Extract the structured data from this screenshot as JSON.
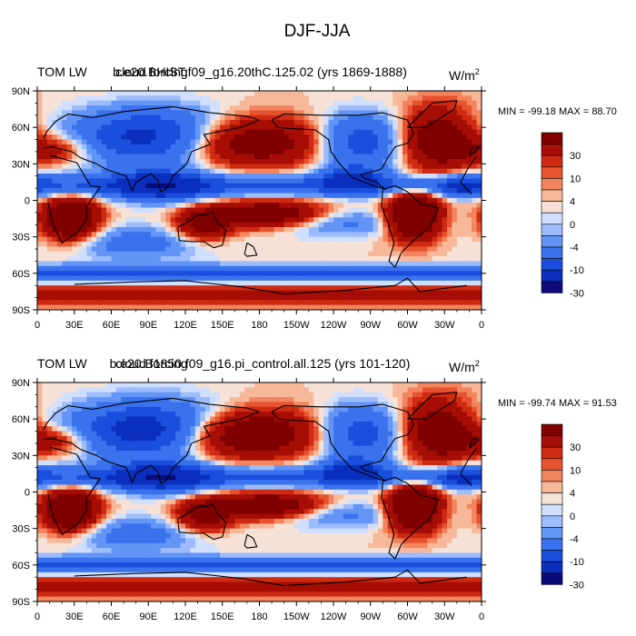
{
  "figure": {
    "title": "DJF-JJA"
  },
  "colors": {
    "levels_palette": [
      "#0a0a78",
      "#0b2fbd",
      "#1a4fdd",
      "#3a72ee",
      "#6395f6",
      "#9dbcfb",
      "#cfdffd",
      "#f6e1d6",
      "#f7b89a",
      "#f2855e",
      "#e6532e",
      "#cf2a12",
      "#a50d05",
      "#800000"
    ],
    "land": "#000000",
    "frame": "#000000"
  },
  "chart_data": [
    {
      "type": "heatmap",
      "title_left": "TOM LW",
      "title_center": "b.e20.BHIST.f09_g16.20thC.125.02 (yrs 1869-1888)",
      "title_center_overlay": "cloud forcing",
      "units": "W/m",
      "units_superscript": "2",
      "stats": "MIN = -99.18 MAX =  88.70",
      "xlim": [
        0,
        360
      ],
      "ylim": [
        -90,
        90
      ],
      "x_ticks": [
        "0",
        "30E",
        "60E",
        "90E",
        "120E",
        "150E",
        "180",
        "150W",
        "120W",
        "90W",
        "60W",
        "30W",
        "0"
      ],
      "y_ticks": [
        "90N",
        "60N",
        "30N",
        "0",
        "30S",
        "60S",
        "90S"
      ],
      "colorbar_levels": [
        -50,
        -30,
        -20,
        -10,
        -6,
        -4,
        -2,
        0,
        2,
        4,
        6,
        10,
        20,
        30,
        50
      ],
      "colorbar_labels": [
        "30",
        "10",
        "4",
        "0",
        "-4",
        "-10",
        "-30"
      ]
    },
    {
      "type": "heatmap",
      "title_left": "TOM LW",
      "title_center": "b.e20.B1850.f09_g16.pi_control.all.125 (yrs 101-120)",
      "title_center_overlay": "cloud forcing",
      "units": "W/m",
      "units_superscript": "2",
      "stats": "MIN = -99.74 MAX =  91.53",
      "xlim": [
        0,
        360
      ],
      "ylim": [
        -90,
        90
      ],
      "x_ticks": [
        "0",
        "30E",
        "60E",
        "90E",
        "120E",
        "150E",
        "180",
        "150W",
        "120W",
        "90W",
        "60W",
        "30W",
        "0"
      ],
      "y_ticks": [
        "90N",
        "60N",
        "30N",
        "0",
        "30S",
        "60S",
        "90S"
      ],
      "colorbar_levels": [
        -50,
        -30,
        -20,
        -10,
        -6,
        -4,
        -2,
        0,
        2,
        4,
        6,
        10,
        20,
        30,
        50
      ],
      "colorbar_labels": [
        "30",
        "10",
        "4",
        "0",
        "-4",
        "-10",
        "-30"
      ]
    }
  ]
}
